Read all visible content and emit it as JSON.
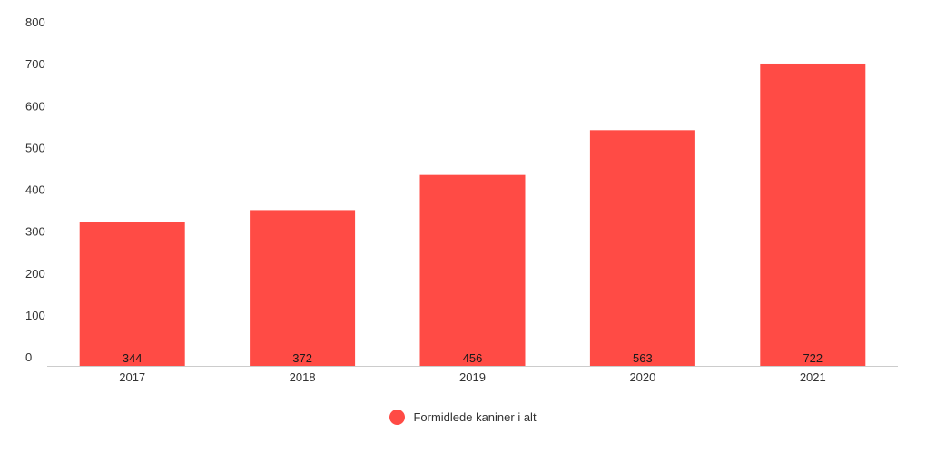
{
  "chart_data": {
    "type": "bar",
    "title": "",
    "xlabel": "",
    "ylabel": "",
    "categories": [
      "2017",
      "2018",
      "2019",
      "2020",
      "2021"
    ],
    "series": [
      {
        "name": "Formidlede kaniner i alt",
        "values": [
          344,
          372,
          456,
          563,
          722
        ],
        "data_labels": [
          "344",
          "372",
          "456",
          "563",
          "722"
        ]
      }
    ],
    "ylim": [
      0,
      800
    ],
    "yticks": [
      0,
      100,
      200,
      300,
      400,
      500,
      600,
      700,
      800
    ],
    "ytick_labels": [
      "0",
      "100",
      "200",
      "300",
      "400",
      "500",
      "600",
      "700",
      "800"
    ],
    "grid": false,
    "legend": "bottom-center",
    "bar_color": "#ff4b45",
    "axis_color": "#cccccc"
  }
}
